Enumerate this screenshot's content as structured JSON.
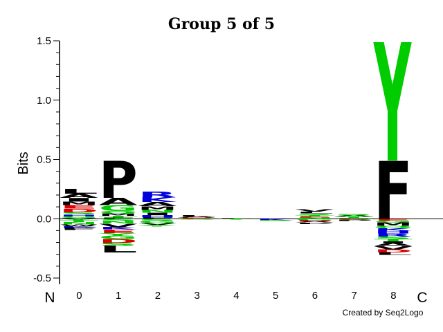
{
  "chart_data": {
    "type": "sequence-logo",
    "title": "Group 5 of 5",
    "ylabel": "Bits",
    "ylim": [
      -0.5,
      1.5
    ],
    "yticks": [
      "1.5",
      "1.0",
      "0.5",
      "0.0",
      "-0.5"
    ],
    "ytick_values": [
      1.5,
      1.0,
      0.5,
      0.0,
      -0.5
    ],
    "positions": [
      "0",
      "1",
      "2",
      "3",
      "4",
      "5",
      "6",
      "7",
      "8"
    ],
    "n_terminal_label": "N",
    "c_terminal_label": "C",
    "credit": "Created by Seq2Logo",
    "colors": {
      "acidic": "#dd0000",
      "basic": "#0000dd",
      "polar": "#00cc00",
      "hydrophobic": "#000000",
      "other": "#ddaa00"
    },
    "stacks": [
      {
        "position": "0",
        "positive": [
          {
            "aa": "V",
            "value": 0.008,
            "color": "#000000"
          },
          {
            "aa": "G",
            "value": 0.012,
            "color": "#00cc00"
          },
          {
            "aa": "H",
            "value": 0.015,
            "color": "#0000dd"
          },
          {
            "aa": "S",
            "value": 0.02,
            "color": "#00cc00"
          },
          {
            "aa": "D",
            "value": 0.03,
            "color": "#dd0000"
          },
          {
            "aa": "E",
            "value": 0.03,
            "color": "#dd0000"
          },
          {
            "aa": "M",
            "value": 0.03,
            "color": "#000000"
          },
          {
            "aa": "A",
            "value": 0.035,
            "color": "#000000"
          },
          {
            "aa": "I",
            "value": 0.03,
            "color": "#000000"
          },
          {
            "aa": "L",
            "value": 0.04,
            "color": "#000000"
          }
        ],
        "negative": [
          {
            "aa": "Y",
            "value": 0.012,
            "color": "#00cc00"
          },
          {
            "aa": "T",
            "value": 0.015,
            "color": "#00cc00"
          },
          {
            "aa": "N",
            "value": 0.02,
            "color": "#00cc00"
          },
          {
            "aa": "W",
            "value": 0.015,
            "color": "#000000"
          },
          {
            "aa": "K",
            "value": 0.012,
            "color": "#0000dd"
          },
          {
            "aa": "P",
            "value": 0.01,
            "color": "#000000"
          },
          {
            "aa": "F",
            "value": 0.01,
            "color": "#000000"
          }
        ]
      },
      {
        "position": "1",
        "positive": [
          {
            "aa": "F",
            "value": 0.01,
            "color": "#000000"
          },
          {
            "aa": "T",
            "value": 0.015,
            "color": "#00cc00"
          },
          {
            "aa": "M",
            "value": 0.02,
            "color": "#000000"
          },
          {
            "aa": "Q",
            "value": 0.02,
            "color": "#00cc00"
          },
          {
            "aa": "G",
            "value": 0.05,
            "color": "#00cc00"
          },
          {
            "aa": "A",
            "value": 0.06,
            "color": "#000000"
          },
          {
            "aa": "P",
            "value": 0.31,
            "color": "#000000"
          }
        ],
        "negative": [
          {
            "aa": "S",
            "value": 0.02,
            "color": "#00cc00"
          },
          {
            "aa": "N",
            "value": 0.02,
            "color": "#00cc00"
          },
          {
            "aa": "V",
            "value": 0.03,
            "color": "#000000"
          },
          {
            "aa": "K",
            "value": 0.02,
            "color": "#0000dd"
          },
          {
            "aa": "E",
            "value": 0.03,
            "color": "#dd0000"
          },
          {
            "aa": "Y",
            "value": 0.02,
            "color": "#00cc00"
          },
          {
            "aa": "G",
            "value": 0.03,
            "color": "#00cc00"
          },
          {
            "aa": "D",
            "value": 0.035,
            "color": "#dd0000"
          },
          {
            "aa": "S",
            "value": 0.025,
            "color": "#00cc00"
          },
          {
            "aa": "L",
            "value": 0.055,
            "color": "#000000"
          }
        ]
      },
      {
        "position": "2",
        "positive": [
          {
            "aa": "F",
            "value": 0.01,
            "color": "#000000"
          },
          {
            "aa": "H",
            "value": 0.02,
            "color": "#0000dd"
          },
          {
            "aa": "N",
            "value": 0.025,
            "color": "#00cc00"
          },
          {
            "aa": "M",
            "value": 0.03,
            "color": "#000000"
          },
          {
            "aa": "A",
            "value": 0.035,
            "color": "#000000"
          },
          {
            "aa": "I",
            "value": 0.02,
            "color": "#000000"
          },
          {
            "aa": "K",
            "value": 0.04,
            "color": "#0000dd"
          },
          {
            "aa": "R",
            "value": 0.05,
            "color": "#0000dd"
          }
        ],
        "negative": [
          {
            "aa": "S",
            "value": 0.015,
            "color": "#00cc00"
          },
          {
            "aa": "G",
            "value": 0.02,
            "color": "#00cc00"
          },
          {
            "aa": "V",
            "value": 0.015,
            "color": "#000000"
          },
          {
            "aa": "Y",
            "value": 0.015,
            "color": "#00cc00"
          }
        ]
      },
      {
        "position": "3",
        "positive": [
          {
            "aa": "E",
            "value": 0.01,
            "color": "#dd0000"
          },
          {
            "aa": "L",
            "value": 0.012,
            "color": "#000000"
          },
          {
            "aa": "A",
            "value": 0.01,
            "color": "#000000"
          }
        ],
        "negative": [
          {
            "aa": "G",
            "value": 0.006,
            "color": "#00cc00"
          }
        ]
      },
      {
        "position": "4",
        "positive": [
          {
            "aa": "D",
            "value": 0.004,
            "color": "#dd0000"
          },
          {
            "aa": "L",
            "value": 0.004,
            "color": "#000000"
          }
        ],
        "negative": [
          {
            "aa": "T",
            "value": 0.006,
            "color": "#00cc00"
          }
        ]
      },
      {
        "position": "5",
        "positive": [
          {
            "aa": "A",
            "value": 0.003,
            "color": "#000000"
          }
        ],
        "negative": [
          {
            "aa": "K",
            "value": 0.012,
            "color": "#0000dd"
          },
          {
            "aa": "S",
            "value": 0.006,
            "color": "#00cc00"
          }
        ]
      },
      {
        "position": "6",
        "positive": [
          {
            "aa": "N",
            "value": 0.01,
            "color": "#00cc00"
          },
          {
            "aa": "E",
            "value": 0.01,
            "color": "#dd0000"
          },
          {
            "aa": "T",
            "value": 0.012,
            "color": "#00cc00"
          },
          {
            "aa": "S",
            "value": 0.012,
            "color": "#00cc00"
          },
          {
            "aa": "L",
            "value": 0.015,
            "color": "#000000"
          },
          {
            "aa": "V",
            "value": 0.018,
            "color": "#000000"
          }
        ],
        "negative": [
          {
            "aa": "G",
            "value": 0.012,
            "color": "#00cc00"
          },
          {
            "aa": "D",
            "value": 0.01,
            "color": "#dd0000"
          },
          {
            "aa": "A",
            "value": 0.01,
            "color": "#000000"
          },
          {
            "aa": "P",
            "value": 0.012,
            "color": "#000000"
          }
        ]
      },
      {
        "position": "7",
        "positive": [
          {
            "aa": "E",
            "value": 0.008,
            "color": "#dd0000"
          },
          {
            "aa": "T",
            "value": 0.01,
            "color": "#00cc00"
          },
          {
            "aa": "A",
            "value": 0.01,
            "color": "#000000"
          },
          {
            "aa": "S",
            "value": 0.015,
            "color": "#00cc00"
          }
        ],
        "negative": [
          {
            "aa": "G",
            "value": 0.008,
            "color": "#00cc00"
          },
          {
            "aa": "P",
            "value": 0.012,
            "color": "#000000"
          }
        ]
      },
      {
        "position": "8",
        "positive": [
          {
            "aa": "F",
            "value": 0.49,
            "color": "#000000"
          },
          {
            "aa": "Y",
            "value": 1.0,
            "color": "#00cc00"
          }
        ],
        "negative": [
          {
            "aa": "E",
            "value": 0.015,
            "color": "#dd0000"
          },
          {
            "aa": "G",
            "value": 0.015,
            "color": "#00cc00"
          },
          {
            "aa": "M",
            "value": 0.03,
            "color": "#000000"
          },
          {
            "aa": "Q",
            "value": 0.02,
            "color": "#00cc00"
          },
          {
            "aa": "K",
            "value": 0.02,
            "color": "#0000dd"
          },
          {
            "aa": "H",
            "value": 0.025,
            "color": "#0000dd"
          },
          {
            "aa": "R",
            "value": 0.025,
            "color": "#0000dd"
          },
          {
            "aa": "S",
            "value": 0.02,
            "color": "#00cc00"
          },
          {
            "aa": "T",
            "value": 0.02,
            "color": "#00cc00"
          },
          {
            "aa": "I",
            "value": 0.015,
            "color": "#000000"
          },
          {
            "aa": "A",
            "value": 0.025,
            "color": "#000000"
          },
          {
            "aa": "V",
            "value": 0.03,
            "color": "#000000"
          },
          {
            "aa": "D",
            "value": 0.025,
            "color": "#dd0000"
          },
          {
            "aa": "L",
            "value": 0.02,
            "color": "#000000"
          }
        ]
      }
    ]
  }
}
